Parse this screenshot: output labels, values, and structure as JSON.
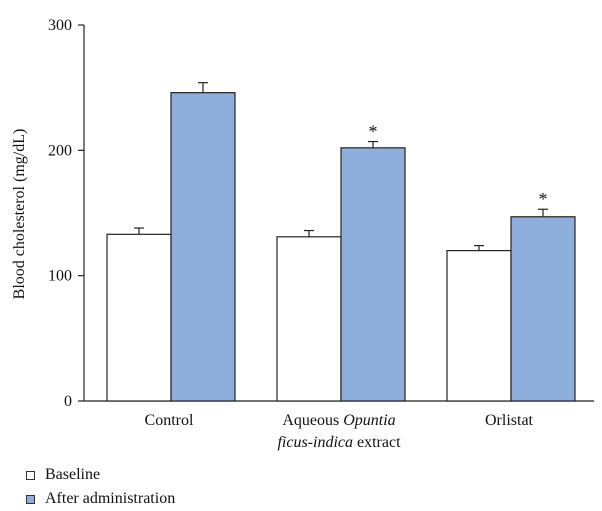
{
  "chart_data": {
    "type": "bar",
    "ylabel": "Blood cholesterol (mg/dL)",
    "ylim": [
      0,
      300
    ],
    "yticks": [
      "0",
      "100",
      "200",
      "300"
    ],
    "categories": [
      {
        "parts": [
          {
            "text": "Control",
            "italic": false
          }
        ]
      },
      {
        "parts": [
          {
            "text": "Aqueous ",
            "italic": false
          },
          {
            "text": "Opuntia",
            "italic": true
          }
        ],
        "line2": [
          {
            "text": "ficus-indica",
            "italic": true
          },
          {
            "text": " extract",
            "italic": false
          }
        ]
      },
      {
        "parts": [
          {
            "text": "Orlistat",
            "italic": false
          }
        ]
      }
    ],
    "series": [
      {
        "name": "Baseline",
        "color": "#ffffff",
        "values": [
          133,
          131,
          120
        ],
        "errors": [
          5,
          5,
          4
        ],
        "significance": [
          "",
          "",
          ""
        ]
      },
      {
        "name": "After administration",
        "color": "#8eaedc",
        "values": [
          246,
          202,
          147
        ],
        "errors": [
          8,
          5,
          6
        ],
        "significance": [
          "",
          "*",
          "*"
        ]
      }
    ],
    "grid": false,
    "legend_position": "bottom-left"
  }
}
